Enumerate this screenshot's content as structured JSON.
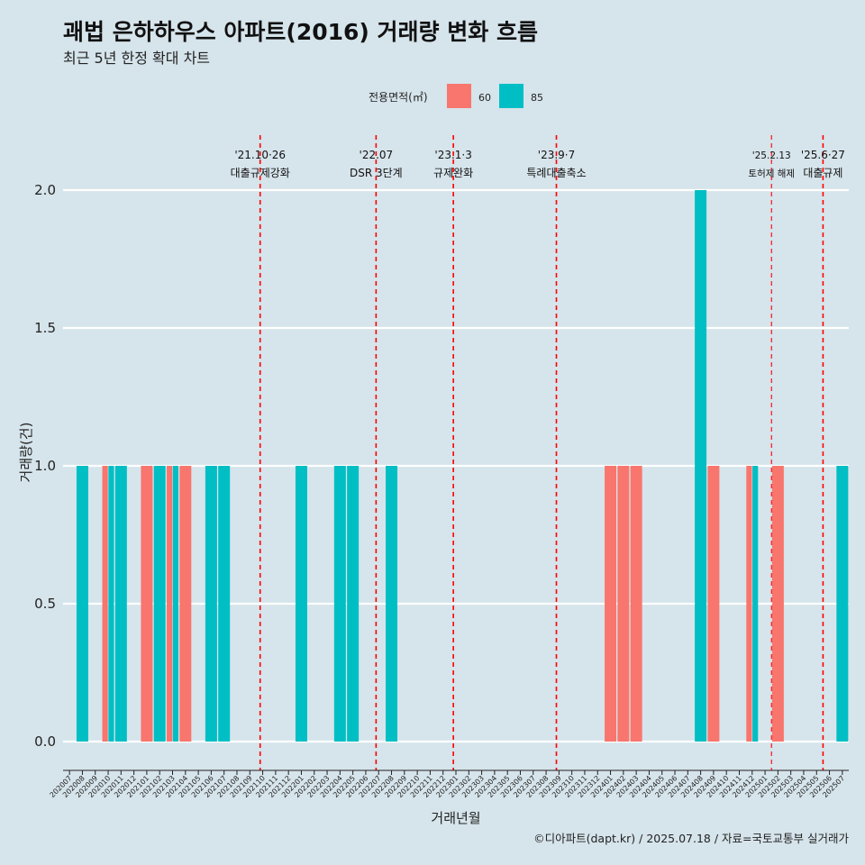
{
  "chart_data": {
    "type": "bar",
    "title": "괘법 은하하우스 아파트(2016) 거래량 변화 흐름",
    "subtitle": "최근 5년 한정 확대 차트",
    "xlabel": "거래년월",
    "ylabel": "거래량(건)",
    "ylim": [
      0,
      2
    ],
    "yticks": [
      "0.0",
      "0.5",
      "1.0",
      "1.5",
      "2.0"
    ],
    "grid": true,
    "legend": {
      "title": "전용면적(㎡)",
      "placement": "top",
      "entries": [
        {
          "name": "60",
          "color": "#f8766d"
        },
        {
          "name": "85",
          "color": "#00bfc4"
        }
      ]
    },
    "categories": [
      "202007",
      "202008",
      "202009",
      "202010",
      "202011",
      "202012",
      "202101",
      "202102",
      "202103",
      "202104",
      "202105",
      "202106",
      "202107",
      "202108",
      "202109",
      "202110",
      "202111",
      "202112",
      "202201",
      "202202",
      "202203",
      "202204",
      "202205",
      "202206",
      "202207",
      "202208",
      "202209",
      "202210",
      "202211",
      "202212",
      "202301",
      "202302",
      "202303",
      "202304",
      "202305",
      "202306",
      "202307",
      "202308",
      "202309",
      "202310",
      "202311",
      "202312",
      "202401",
      "202402",
      "202403",
      "202404",
      "202405",
      "202406",
      "202407",
      "202408",
      "202409",
      "202410",
      "202411",
      "202412",
      "202501",
      "202502",
      "202503",
      "202504",
      "202505",
      "202506",
      "202507"
    ],
    "series": [
      {
        "name": "60",
        "color": "#f8766d",
        "values": [
          0,
          0,
          0,
          1,
          0,
          0,
          1,
          0,
          1,
          1,
          0,
          0,
          0,
          0,
          0,
          0,
          0,
          0,
          0,
          0,
          0,
          0,
          0,
          0,
          0,
          0,
          0,
          0,
          0,
          0,
          0,
          0,
          0,
          0,
          0,
          0,
          0,
          0,
          0,
          0,
          0,
          0,
          1,
          1,
          1,
          0,
          0,
          0,
          0,
          0,
          1,
          0,
          0,
          1,
          0,
          1,
          0,
          0,
          0,
          0,
          0
        ]
      },
      {
        "name": "85",
        "color": "#00bfc4",
        "values": [
          0,
          1,
          0,
          1,
          1,
          0,
          0,
          1,
          1,
          0,
          0,
          1,
          1,
          0,
          0,
          0,
          0,
          0,
          1,
          0,
          0,
          1,
          1,
          0,
          0,
          1,
          0,
          0,
          0,
          0,
          0,
          0,
          0,
          0,
          0,
          0,
          0,
          0,
          0,
          0,
          0,
          0,
          0,
          0,
          0,
          0,
          0,
          0,
          0,
          2,
          0,
          0,
          0,
          1,
          0,
          0,
          0,
          0,
          0,
          0,
          1
        ]
      }
    ],
    "events": [
      {
        "date": "'21.10·26",
        "label": "대출규제강화",
        "pos": 15.3,
        "small": false
      },
      {
        "date": "'22.07",
        "label": "DSR 3단계",
        "pos": 24.3,
        "small": false
      },
      {
        "date": "'23.1·3",
        "label": "규제완화",
        "pos": 30.3,
        "small": false
      },
      {
        "date": "'23.9·7",
        "label": "특례대출축소",
        "pos": 38.3,
        "small": false
      },
      {
        "date": "'25.2.13",
        "label": "토허제 해제",
        "pos": 55.0,
        "small": true
      },
      {
        "date": "'25.6·27",
        "label": "대출규제",
        "pos": 59.0,
        "small": false
      }
    ],
    "caption": "©디아파트(dapt.kr) / 2025.07.18 / 자료=국토교통부 실거래가"
  }
}
